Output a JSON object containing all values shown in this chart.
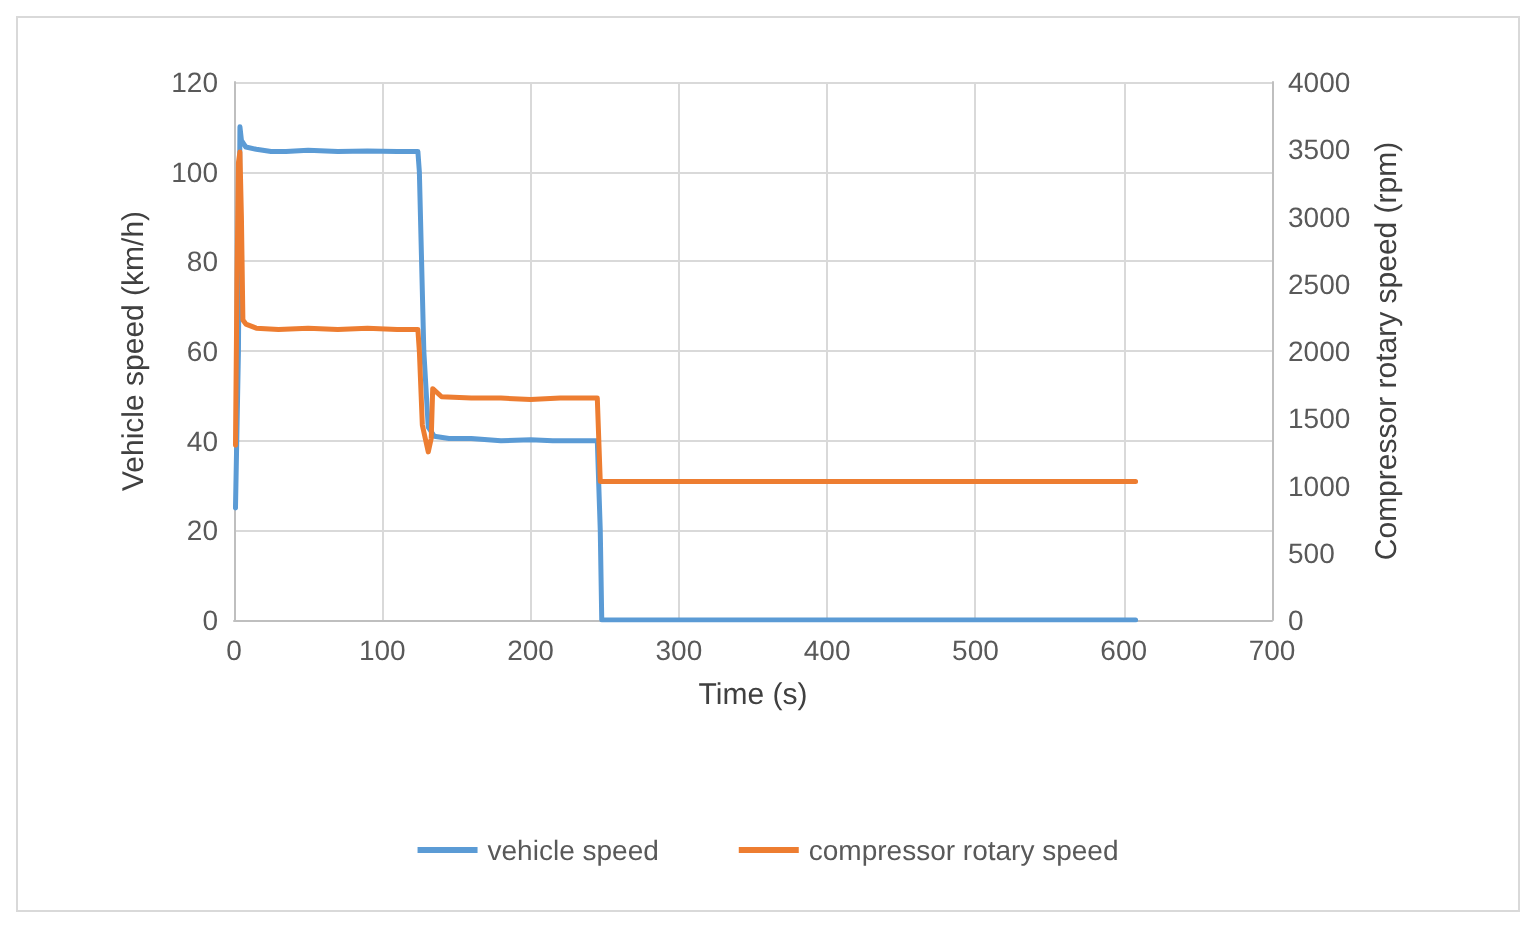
{
  "chart_data": {
    "type": "line",
    "xlabel": "Time (s)",
    "ylabel": "Vehicle speed (km/h)",
    "y2label": "Compressor rotary speed (rpm)",
    "xlim": [
      0,
      700
    ],
    "xticks": [
      0,
      100,
      200,
      300,
      400,
      500,
      600,
      700
    ],
    "ylim": [
      0,
      120
    ],
    "yticks": [
      0,
      20,
      40,
      60,
      80,
      100,
      120
    ],
    "y2lim": [
      0,
      4000
    ],
    "y2ticks": [
      0,
      500,
      1000,
      1500,
      2000,
      2500,
      3000,
      3500,
      4000
    ],
    "grid": true,
    "legend": "bottom",
    "marker": "none",
    "line_style": "solid",
    "series": [
      {
        "name": "vehicle speed",
        "color": "#5b9bd5",
        "x": [
          1,
          3,
          4,
          5,
          8,
          15,
          25,
          35,
          50,
          70,
          90,
          110,
          124,
          125,
          128,
          131,
          135,
          145,
          160,
          180,
          200,
          215,
          225,
          240,
          245,
          247,
          248,
          260,
          400,
          608
        ],
        "values": [
          25,
          60,
          110,
          107,
          105.5,
          105,
          104.5,
          104.5,
          104.8,
          104.5,
          104.6,
          104.5,
          104.5,
          100,
          60,
          43,
          41,
          40.5,
          40.5,
          40,
          40.2,
          40,
          40,
          40,
          40,
          20,
          0,
          0,
          0,
          0
        ]
      },
      {
        "name": "compressor rotary speed",
        "color": "#ed7d31",
        "axis": "y2",
        "x": [
          1,
          2,
          3,
          4,
          5,
          6,
          8,
          15,
          30,
          50,
          70,
          90,
          110,
          124,
          125,
          127,
          129,
          131,
          133,
          134,
          140,
          160,
          180,
          200,
          220,
          240,
          245,
          247,
          250,
          300,
          400,
          500,
          608
        ],
        "values": [
          1300,
          2500,
          3400,
          3480,
          3000,
          2230,
          2200,
          2170,
          2160,
          2170,
          2160,
          2170,
          2160,
          2160,
          2000,
          1450,
          1350,
          1250,
          1350,
          1720,
          1660,
          1650,
          1650,
          1640,
          1650,
          1650,
          1650,
          1030,
          1030,
          1030,
          1030,
          1030,
          1030
        ]
      }
    ]
  }
}
